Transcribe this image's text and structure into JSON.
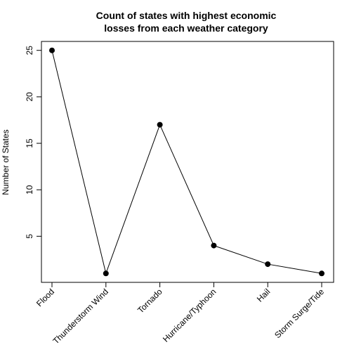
{
  "chart_data": {
    "type": "line",
    "title_lines": [
      "Count of states with highest economic",
      "losses from each weather category"
    ],
    "xlabel": "",
    "ylabel": "Number of States",
    "categories": [
      "Flood",
      "Thunderstorm Wind",
      "Tornado",
      "Hurricane/Typhoon",
      "Hail",
      "Storm Surge/Tide"
    ],
    "values": [
      25,
      1,
      17,
      4,
      2,
      1
    ],
    "y_ticks": [
      5,
      10,
      15,
      20,
      25
    ],
    "ylim": [
      0.04,
      25.96
    ],
    "grid": false,
    "legend": "none",
    "point_style": "filled-circle",
    "line_color": "#000000",
    "point_color": "#000000"
  }
}
